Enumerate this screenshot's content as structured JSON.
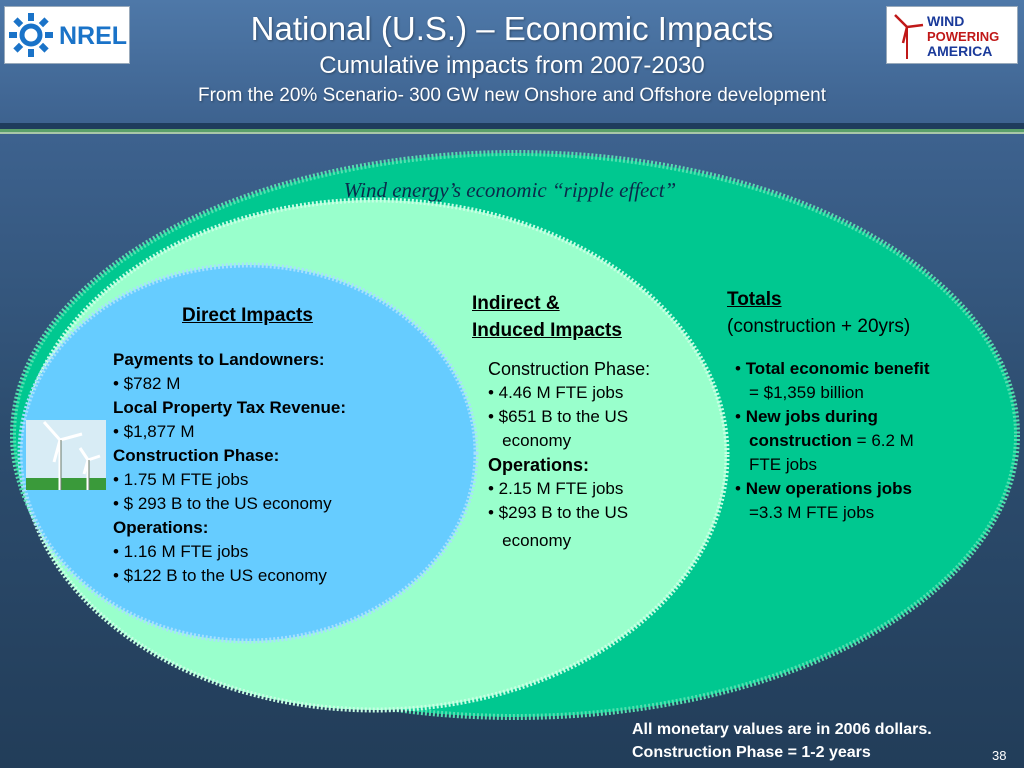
{
  "header": {
    "title": "National (U.S.) – Economic Impacts",
    "subtitle": "Cumulative impacts from 2007-2030",
    "scenario": "From the 20% Scenario- 300 GW new Onshore and Offshore development",
    "logo_left_text": "NREL",
    "logo_right_lines": [
      "WIND",
      "POWERING",
      "AMERICA"
    ]
  },
  "ripple_caption": "Wind energy’s economic “ripple effect”",
  "direct": {
    "heading": "Direct Impacts",
    "lines": [
      {
        "text": "Payments to Landowners:",
        "bold": true
      },
      {
        "text": "• $782 M",
        "bold": false
      },
      {
        "text": "Local Property Tax Revenue:",
        "bold": true
      },
      {
        "text": "• $1,877 M",
        "bold": false
      },
      {
        "text": "Construction Phase:",
        "bold": true
      },
      {
        "text": "• 1.75 M FTE jobs",
        "bold": false
      },
      {
        "text": "• $ 293 B to the US economy",
        "bold": false
      },
      {
        "text": "Operations:",
        "bold": true
      },
      {
        "text": "• 1.16 M FTE jobs",
        "bold": false
      },
      {
        "text": "• $122 B to the US economy",
        "bold": false
      }
    ]
  },
  "indirect": {
    "heading_line1": "Indirect &",
    "heading_line2": "Induced Impacts",
    "lines": [
      {
        "text": "Construction Phase:",
        "bold": false
      },
      {
        "text": "• 4.46 M FTE jobs",
        "bold": false
      },
      {
        "text": "• $651 B to the US",
        "bold": false
      },
      {
        "text": "   economy",
        "bold": false
      },
      {
        "text": "Operations:",
        "bold": true
      },
      {
        "text": "• 2.15 M FTE jobs",
        "bold": false
      },
      {
        "text": "• $293 B to the US",
        "bold": false
      },
      {
        "text": "   economy",
        "bold": false
      }
    ]
  },
  "totals": {
    "heading": "Totals",
    "subheading": "(construction + 20yrs)",
    "items": [
      {
        "bold": "Total economic benefit",
        "rest": "= $1,359 billion"
      },
      {
        "bold": "New jobs during construction",
        "rest": "= 6.2 M FTE jobs"
      },
      {
        "bold": "New operations jobs",
        "rest": "=3.3 M FTE jobs"
      }
    ]
  },
  "footer": {
    "note1": "All monetary values are in 2006 dollars.",
    "note2": "Construction Phase = 1-2 years",
    "page_number": "38"
  },
  "colors": {
    "outer_ellipse": "#00c890",
    "middle_ellipse": "#99ffcc",
    "inner_ellipse": "#66ccff",
    "background_top": "#4e78a8",
    "background_bottom": "#223d59"
  },
  "icons": {
    "left_logo": "nrel-logo",
    "right_logo": "wind-powering-america-logo",
    "illustration": "wind-turbines-icon"
  }
}
